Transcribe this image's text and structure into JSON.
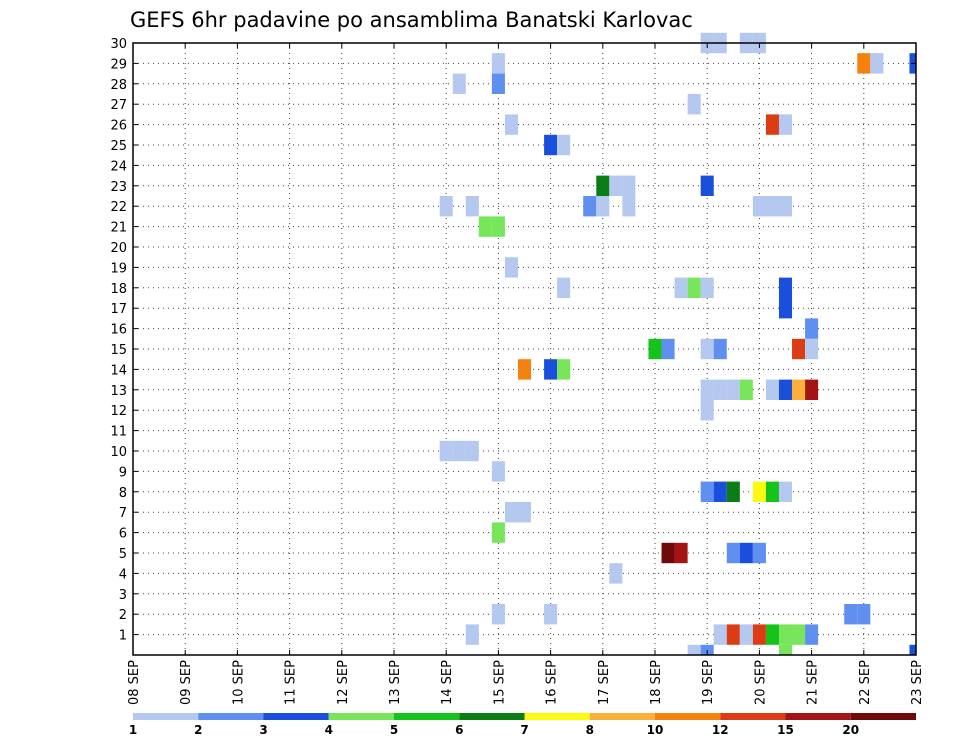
{
  "chart_data": {
    "type": "heatmap",
    "title": "GEFS 6hr padavine po ansamblima Banatski Karlovac",
    "x_ticks": [
      "08 SEP",
      "09 SEP",
      "10 SEP",
      "11 SEP",
      "12 SEP",
      "13 SEP",
      "14 SEP",
      "15 SEP",
      "16 SEP",
      "17 SEP",
      "18 SEP",
      "19 SEP",
      "20 SEP",
      "21 SEP",
      "22 SEP",
      "23 SEP"
    ],
    "x_range_days": [
      8,
      23
    ],
    "y_ticks": [
      1,
      2,
      3,
      4,
      5,
      6,
      7,
      8,
      9,
      10,
      11,
      12,
      13,
      14,
      15,
      16,
      17,
      18,
      19,
      20,
      21,
      22,
      23,
      24,
      25,
      26,
      27,
      28,
      29,
      30
    ],
    "y_range": [
      0,
      30
    ],
    "grid": true,
    "colorbar": {
      "labels": [
        "1",
        "2",
        "3",
        "4",
        "5",
        "6",
        "7",
        "8",
        "10",
        "12",
        "15",
        "20"
      ],
      "colors": [
        "#b4c8f0",
        "#5f8ff0",
        "#1a4fdc",
        "#78e65a",
        "#16c31b",
        "#0a7d15",
        "#fafa12",
        "#fbb03b",
        "#f5820f",
        "#dc3c14",
        "#a51414",
        "#6e0a0a"
      ]
    },
    "cells": [
      {
        "m": 30,
        "t": 19.0,
        "c": 1
      },
      {
        "m": 30,
        "t": 19.25,
        "c": 1
      },
      {
        "m": 30,
        "t": 19.75,
        "c": 1
      },
      {
        "m": 30,
        "t": 20.0,
        "c": 1
      },
      {
        "m": 29,
        "t": 15.0,
        "c": 1
      },
      {
        "m": 29,
        "t": 22.0,
        "c": 9
      },
      {
        "m": 29,
        "t": 22.25,
        "c": 1
      },
      {
        "m": 29,
        "t": 23.0,
        "c": 3
      },
      {
        "m": 28,
        "t": 14.25,
        "c": 1
      },
      {
        "m": 28,
        "t": 15.0,
        "c": 2
      },
      {
        "m": 27,
        "t": 18.75,
        "c": 1
      },
      {
        "m": 26,
        "t": 15.25,
        "c": 1
      },
      {
        "m": 26,
        "t": 20.25,
        "c": 10
      },
      {
        "m": 26,
        "t": 20.5,
        "c": 1
      },
      {
        "m": 25,
        "t": 16.0,
        "c": 3
      },
      {
        "m": 25,
        "t": 16.25,
        "c": 1
      },
      {
        "m": 23,
        "t": 17.0,
        "c": 6
      },
      {
        "m": 23,
        "t": 17.25,
        "c": 1
      },
      {
        "m": 23,
        "t": 17.5,
        "c": 1
      },
      {
        "m": 23,
        "t": 19.0,
        "c": 3
      },
      {
        "m": 22,
        "t": 14.0,
        "c": 1
      },
      {
        "m": 22,
        "t": 14.5,
        "c": 1
      },
      {
        "m": 22,
        "t": 16.75,
        "c": 2
      },
      {
        "m": 22,
        "t": 17.0,
        "c": 1
      },
      {
        "m": 22,
        "t": 17.5,
        "c": 1
      },
      {
        "m": 22,
        "t": 20.0,
        "c": 1
      },
      {
        "m": 22,
        "t": 20.25,
        "c": 1
      },
      {
        "m": 22,
        "t": 20.5,
        "c": 1
      },
      {
        "m": 21,
        "t": 14.75,
        "c": 4
      },
      {
        "m": 21,
        "t": 15.0,
        "c": 4
      },
      {
        "m": 19,
        "t": 15.25,
        "c": 1
      },
      {
        "m": 18,
        "t": 16.25,
        "c": 1
      },
      {
        "m": 18,
        "t": 18.5,
        "c": 1
      },
      {
        "m": 18,
        "t": 18.75,
        "c": 4
      },
      {
        "m": 18,
        "t": 19.0,
        "c": 1
      },
      {
        "m": 18,
        "t": 20.5,
        "c": 3
      },
      {
        "m": 17,
        "t": 20.5,
        "c": 3
      },
      {
        "m": 16,
        "t": 21.0,
        "c": 2
      },
      {
        "m": 15,
        "t": 18.0,
        "c": 5
      },
      {
        "m": 15,
        "t": 18.25,
        "c": 2
      },
      {
        "m": 15,
        "t": 19.0,
        "c": 1
      },
      {
        "m": 15,
        "t": 19.25,
        "c": 2
      },
      {
        "m": 15,
        "t": 20.75,
        "c": 10
      },
      {
        "m": 15,
        "t": 21.0,
        "c": 1
      },
      {
        "m": 14,
        "t": 15.5,
        "c": 9
      },
      {
        "m": 14,
        "t": 16.0,
        "c": 3
      },
      {
        "m": 14,
        "t": 16.25,
        "c": 4
      },
      {
        "m": 13,
        "t": 19.0,
        "c": 1
      },
      {
        "m": 13,
        "t": 19.25,
        "c": 1
      },
      {
        "m": 13,
        "t": 19.5,
        "c": 1
      },
      {
        "m": 13,
        "t": 19.75,
        "c": 4
      },
      {
        "m": 13,
        "t": 20.25,
        "c": 1
      },
      {
        "m": 13,
        "t": 20.5,
        "c": 3
      },
      {
        "m": 13,
        "t": 20.75,
        "c": 8
      },
      {
        "m": 13,
        "t": 21.0,
        "c": 11
      },
      {
        "m": 12,
        "t": 19.0,
        "c": 1
      },
      {
        "m": 10,
        "t": 14.0,
        "c": 1
      },
      {
        "m": 10,
        "t": 14.25,
        "c": 1
      },
      {
        "m": 10,
        "t": 14.5,
        "c": 1
      },
      {
        "m": 9,
        "t": 15.0,
        "c": 1
      },
      {
        "m": 8,
        "t": 19.0,
        "c": 2
      },
      {
        "m": 8,
        "t": 19.25,
        "c": 3
      },
      {
        "m": 8,
        "t": 19.5,
        "c": 6
      },
      {
        "m": 8,
        "t": 20.0,
        "c": 7
      },
      {
        "m": 8,
        "t": 20.25,
        "c": 5
      },
      {
        "m": 8,
        "t": 20.5,
        "c": 1
      },
      {
        "m": 7,
        "t": 15.25,
        "c": 1
      },
      {
        "m": 7,
        "t": 15.5,
        "c": 1
      },
      {
        "m": 6,
        "t": 15.0,
        "c": 4
      },
      {
        "m": 5,
        "t": 18.25,
        "c": 12
      },
      {
        "m": 5,
        "t": 18.5,
        "c": 11
      },
      {
        "m": 5,
        "t": 19.5,
        "c": 2
      },
      {
        "m": 5,
        "t": 19.75,
        "c": 3
      },
      {
        "m": 5,
        "t": 20.0,
        "c": 2
      },
      {
        "m": 4,
        "t": 17.25,
        "c": 1
      },
      {
        "m": 2,
        "t": 15.0,
        "c": 1
      },
      {
        "m": 2,
        "t": 16.0,
        "c": 1
      },
      {
        "m": 2,
        "t": 21.75,
        "c": 2
      },
      {
        "m": 2,
        "t": 22.0,
        "c": 2
      },
      {
        "m": 1,
        "t": 14.5,
        "c": 1
      },
      {
        "m": 1,
        "t": 19.25,
        "c": 1
      },
      {
        "m": 1,
        "t": 19.5,
        "c": 10
      },
      {
        "m": 1,
        "t": 19.75,
        "c": 1
      },
      {
        "m": 1,
        "t": 20.0,
        "c": 10
      },
      {
        "m": 1,
        "t": 20.25,
        "c": 5
      },
      {
        "m": 1,
        "t": 20.5,
        "c": 4
      },
      {
        "m": 1,
        "t": 20.75,
        "c": 4
      },
      {
        "m": 1,
        "t": 21.0,
        "c": 2
      },
      {
        "m": 0,
        "t": 18.75,
        "c": 1
      },
      {
        "m": 0,
        "t": 19.0,
        "c": 2
      },
      {
        "m": 0,
        "t": 20.5,
        "c": 4
      },
      {
        "m": 0,
        "t": 23.0,
        "c": 3
      }
    ]
  }
}
